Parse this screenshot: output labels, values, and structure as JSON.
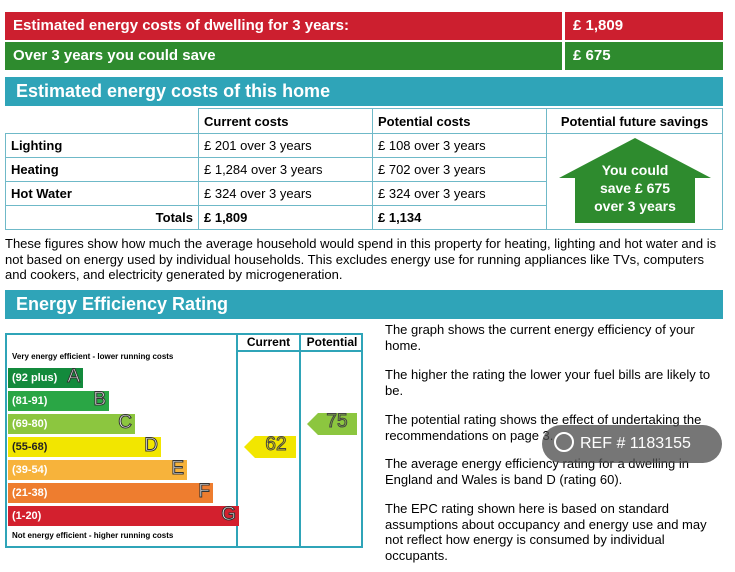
{
  "summary": {
    "label_3yr": "Estimated energy costs of dwelling for 3 years:",
    "value_3yr": "£ 1,809",
    "label_save": "Over 3 years you could save",
    "value_save": "£ 675"
  },
  "costs_section": {
    "title": "Estimated energy costs of this home",
    "headers": {
      "current": "Current costs",
      "potential": "Potential costs",
      "savings": "Potential future savings"
    },
    "rows": [
      {
        "label": "Lighting",
        "current": "£ 201 over 3 years",
        "potential": "£ 108 over 3 years"
      },
      {
        "label": "Heating",
        "current": "£ 1,284 over 3 years",
        "potential": "£ 702 over 3 years"
      },
      {
        "label": "Hot Water",
        "current": "£ 324 over 3 years",
        "potential": "£ 324 over 3 years"
      }
    ],
    "totals": {
      "label": "Totals",
      "current": "£ 1,809",
      "potential": "£ 1,134"
    },
    "house_text": {
      "line1": "You could",
      "line2": "save £ 675",
      "line3": "over 3 years"
    }
  },
  "note": "These figures show how much the average household would spend in this property for heating, lighting and hot water and is not based on energy used by individual households. This excludes energy use for running appliances like TVs, computers and cookers, and electricity generated by microgeneration.",
  "eer_section": {
    "title": "Energy Efficiency Rating",
    "top_label": "Very energy efficient - lower running costs",
    "bottom_label": "Not energy efficient - higher running costs",
    "col_current": "Current",
    "col_potential": "Potential",
    "bands": [
      {
        "range": "(92 plus)",
        "letter": "A",
        "color": "#138a3c"
      },
      {
        "range": "(81-91)",
        "letter": "B",
        "color": "#2aa645"
      },
      {
        "range": "(69-80)",
        "letter": "C",
        "color": "#8cc63f"
      },
      {
        "range": "(55-68)",
        "letter": "D",
        "color": "#f2e600"
      },
      {
        "range": "(39-54)",
        "letter": "E",
        "color": "#f7b33b"
      },
      {
        "range": "(21-38)",
        "letter": "F",
        "color": "#ee7d2f"
      },
      {
        "range": "(1-20)",
        "letter": "G",
        "color": "#d3202e"
      }
    ],
    "current_rating": "62",
    "current_color": "#f2e600",
    "potential_rating": "75",
    "potential_color": "#8cc63f",
    "descriptions": [
      "The graph shows the current energy efficiency of your home.",
      "The higher the rating the lower your fuel bills are likely to be.",
      "The potential rating shows the effect of undertaking the recommendations on page 3.",
      "The average energy efficiency rating for a dwelling in England and Wales is band D (rating 60).",
      "The EPC rating shown here is based on standard assumptions about occupancy and energy use and may not reflect how energy is consumed by individual occupants."
    ]
  },
  "watermark": {
    "text": "REF # 1183155"
  }
}
